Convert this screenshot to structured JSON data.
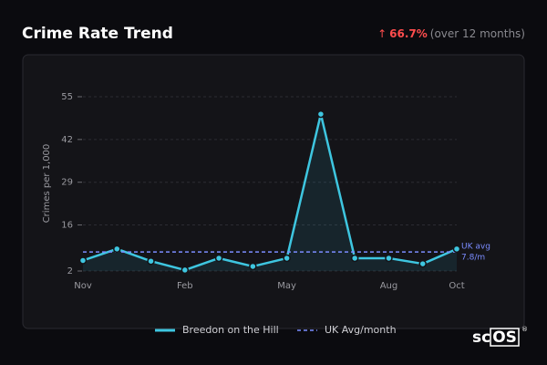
{
  "header": {
    "arrow": "↑",
    "change": "66.7%",
    "period": "(over 12 months)"
  },
  "brand": [
    "sc",
    "OS",
    "®"
  ],
  "chart_data": {
    "type": "line",
    "title": "Crime Rate Trend",
    "y_label": "Crimes per 1,000",
    "categories": [
      "Nov",
      null,
      null,
      "Feb",
      null,
      null,
      "May",
      null,
      null,
      "Aug",
      null,
      "Oct"
    ],
    "series": [
      {
        "name": "Breedon on the Hill",
        "color": "#3ec6e0",
        "values": [
          5.2,
          8.7,
          5,
          2.3,
          5.9,
          3.4,
          5.9,
          49.7,
          5.9,
          5.9,
          4.2,
          8.7
        ]
      }
    ],
    "reference": {
      "name": "UK Avg/month",
      "color": "#7b8cff",
      "value": 7.8,
      "label_lines": [
        "UK avg",
        "7.8/m"
      ]
    },
    "ylim": [
      2,
      55
    ],
    "yticks": [
      2,
      16,
      29,
      42,
      55
    ],
    "grid": true,
    "legend": "bottom"
  }
}
